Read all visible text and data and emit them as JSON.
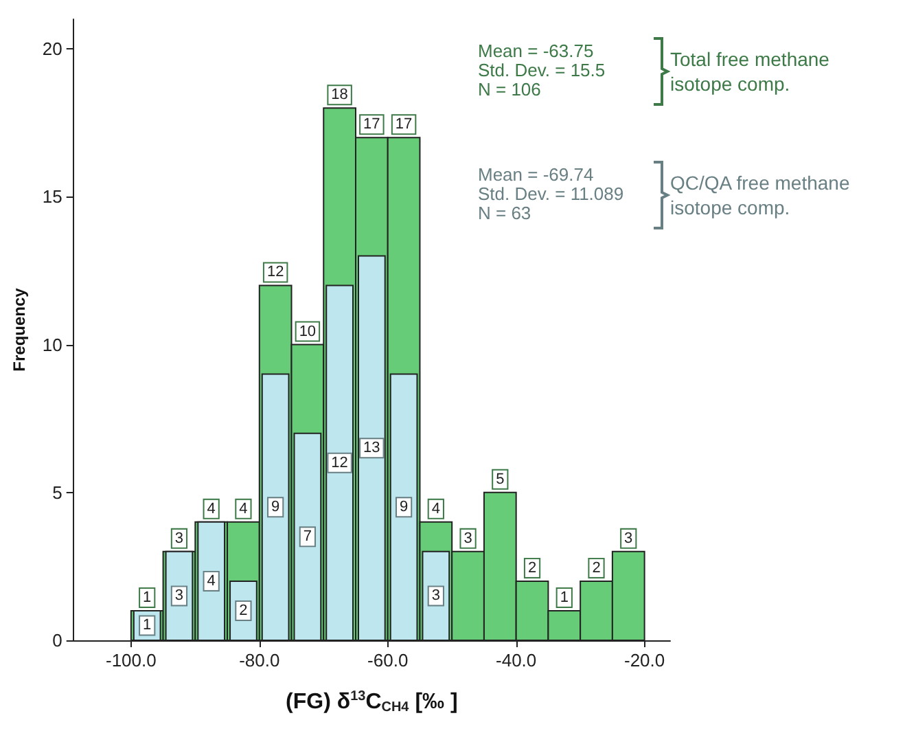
{
  "chart_data": {
    "type": "histogram",
    "xlabel": "(FG) δ$^{13}$C$_{CH4}$ [‰ ]",
    "ylabel": "Frequency",
    "bins": [
      -100,
      -95,
      -90,
      -85,
      -80,
      -75,
      -70,
      -65,
      -60,
      -55,
      -50,
      -45,
      -40,
      -35,
      -30,
      -25,
      -20
    ],
    "series": [
      {
        "name": "Total free methane isotope comp.",
        "color": "#66cc77",
        "values": [
          1,
          3,
          4,
          4,
          12,
          10,
          18,
          17,
          17,
          4,
          3,
          5,
          2,
          1,
          2,
          3
        ]
      },
      {
        "name": "QC/QA free methane isotope comp.",
        "color": "#bde6ee",
        "values": [
          1,
          3,
          4,
          2,
          9,
          7,
          12,
          13,
          9,
          3,
          null,
          null,
          null,
          null,
          null,
          null
        ]
      }
    ],
    "annotations": [
      "Mean = -63.75\nStd. Dev. = 15.5\nN = 106",
      "Mean = -69.74\nStd. Dev. = 11.089\nN = 63"
    ],
    "xlim": [
      -109,
      -16
    ],
    "ylim": [
      0,
      21
    ],
    "xticks": [
      {
        "value": -100,
        "label": "-100.0"
      },
      {
        "value": -80,
        "label": "-80.0"
      },
      {
        "value": -60,
        "label": "-60.0"
      },
      {
        "value": -40,
        "label": "-40.0"
      },
      {
        "value": -20,
        "label": "-20.0"
      }
    ],
    "yticks": [
      0,
      5,
      10,
      15,
      20
    ],
    "data_labels": true,
    "grid": false,
    "legend": "top right"
  }
}
